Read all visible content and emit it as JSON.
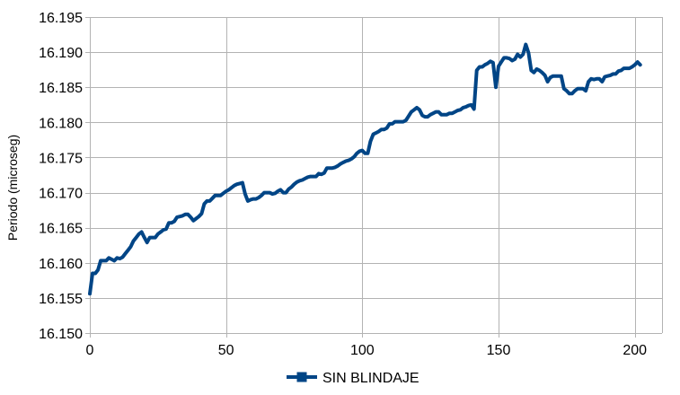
{
  "chart_data": {
    "type": "line",
    "title": "",
    "xlabel": "",
    "ylabel": "Periodo (microseg)",
    "xlim": [
      0,
      210
    ],
    "ylim": [
      16.15,
      16.195
    ],
    "x_ticks": [
      "0",
      "50",
      "100",
      "150",
      "200"
    ],
    "y_ticks": [
      "16.195",
      "16.190",
      "16.185",
      "16.180",
      "16.175",
      "16.170",
      "16.165",
      "16.160",
      "16.155",
      "16.150"
    ],
    "grid": true,
    "legend_position": "bottom",
    "series": [
      {
        "name": "SIN BLINDAJE",
        "color": "#004586",
        "x": [
          0,
          1,
          2,
          3,
          4,
          5,
          6,
          7,
          8,
          9,
          10,
          11,
          12,
          13,
          14,
          15,
          16,
          17,
          18,
          19,
          20,
          21,
          22,
          23,
          24,
          25,
          26,
          27,
          28,
          29,
          30,
          31,
          32,
          33,
          34,
          35,
          36,
          37,
          38,
          39,
          40,
          41,
          42,
          43,
          44,
          45,
          46,
          47,
          48,
          49,
          50,
          51,
          52,
          53,
          54,
          55,
          56,
          57,
          58,
          59,
          60,
          61,
          62,
          63,
          64,
          65,
          66,
          67,
          68,
          69,
          70,
          71,
          72,
          73,
          74,
          75,
          76,
          77,
          78,
          79,
          80,
          81,
          82,
          83,
          84,
          85,
          86,
          87,
          88,
          89,
          90,
          91,
          92,
          93,
          94,
          95,
          96,
          97,
          98,
          99,
          100,
          101,
          102,
          103,
          104,
          105,
          106,
          107,
          108,
          109,
          110,
          111,
          112,
          113,
          114,
          115,
          116,
          117,
          118,
          119,
          120,
          121,
          122,
          123,
          124,
          125,
          126,
          127,
          128,
          129,
          130,
          131,
          132,
          133,
          134,
          135,
          136,
          137,
          138,
          139,
          140,
          141,
          142,
          143,
          144,
          145,
          146,
          147,
          148,
          149,
          150,
          151,
          152,
          153,
          154,
          155,
          156,
          157,
          158,
          159,
          160,
          161,
          162,
          163,
          164,
          165,
          166,
          167,
          168,
          169,
          170,
          171,
          172,
          173,
          174,
          175,
          176,
          177,
          178,
          179,
          180,
          181,
          182,
          183,
          184,
          185,
          186,
          187,
          188,
          189,
          190,
          191,
          192,
          193,
          194,
          195,
          196,
          197,
          198,
          199,
          200,
          201,
          202
        ],
        "values": [
          16.1556,
          16.1585,
          16.1585,
          16.159,
          16.1603,
          16.1603,
          16.1603,
          16.1607,
          16.1605,
          16.1603,
          16.1607,
          16.1606,
          16.1608,
          16.1613,
          16.1618,
          16.1623,
          16.1631,
          16.1636,
          16.1641,
          16.1644,
          16.1636,
          16.1629,
          16.1636,
          16.1636,
          16.1636,
          16.1641,
          16.1644,
          16.1647,
          16.1648,
          16.1657,
          16.1657,
          16.1659,
          16.1665,
          16.1666,
          16.1667,
          16.1669,
          16.1669,
          16.1665,
          16.166,
          16.1663,
          16.1666,
          16.167,
          16.1684,
          16.1688,
          16.1688,
          16.1692,
          16.1696,
          16.1696,
          16.1696,
          16.1699,
          16.1702,
          16.1704,
          16.1707,
          16.171,
          16.1712,
          16.1713,
          16.1714,
          16.1698,
          16.1688,
          16.169,
          16.1691,
          16.1691,
          16.1693,
          16.1696,
          16.17,
          16.17,
          16.17,
          16.1698,
          16.1699,
          16.1702,
          16.1704,
          16.17,
          16.17,
          16.1705,
          16.1708,
          16.1712,
          16.1715,
          16.1717,
          16.1718,
          16.172,
          16.1722,
          16.1723,
          16.1723,
          16.1723,
          16.1727,
          16.1726,
          16.1728,
          16.1735,
          16.1735,
          16.1735,
          16.1736,
          16.1738,
          16.1741,
          16.1743,
          16.1745,
          16.1746,
          16.1748,
          16.1751,
          16.1756,
          16.1759,
          16.176,
          16.1756,
          16.1756,
          16.1773,
          16.1783,
          16.1785,
          16.1787,
          16.179,
          16.179,
          16.1792,
          16.1798,
          16.1798,
          16.1801,
          16.1801,
          16.1801,
          16.1801,
          16.1803,
          16.1809,
          16.1815,
          16.1818,
          16.1821,
          16.1818,
          16.181,
          16.1808,
          16.1808,
          16.1811,
          16.1813,
          16.1815,
          16.1815,
          16.1811,
          16.1811,
          16.1811,
          16.1813,
          16.1813,
          16.1815,
          16.1817,
          16.1818,
          16.1821,
          16.1822,
          16.1824,
          16.1825,
          16.1819,
          16.1874,
          16.1879,
          16.1879,
          16.1882,
          16.1884,
          16.1887,
          16.1885,
          16.185,
          16.188,
          16.1886,
          16.1892,
          16.1892,
          16.1891,
          16.1888,
          16.189,
          16.1897,
          16.1893,
          16.1897,
          16.1911,
          16.1899,
          16.1874,
          16.1871,
          16.1876,
          16.1874,
          16.1871,
          16.1867,
          16.1858,
          16.1864,
          16.1866,
          16.1866,
          16.1866,
          16.1866,
          16.1848,
          16.1845,
          16.1841,
          16.1841,
          16.1845,
          16.1848,
          16.1848,
          16.1848,
          16.1845,
          16.1858,
          16.1862,
          16.1861,
          16.1862,
          16.1862,
          16.1858,
          16.1865,
          16.1866,
          16.1867,
          16.1869,
          16.1869,
          16.1873,
          16.1874,
          16.1877,
          16.1877,
          16.1877,
          16.1879,
          16.1882,
          16.1886,
          16.1882
        ]
      }
    ]
  }
}
